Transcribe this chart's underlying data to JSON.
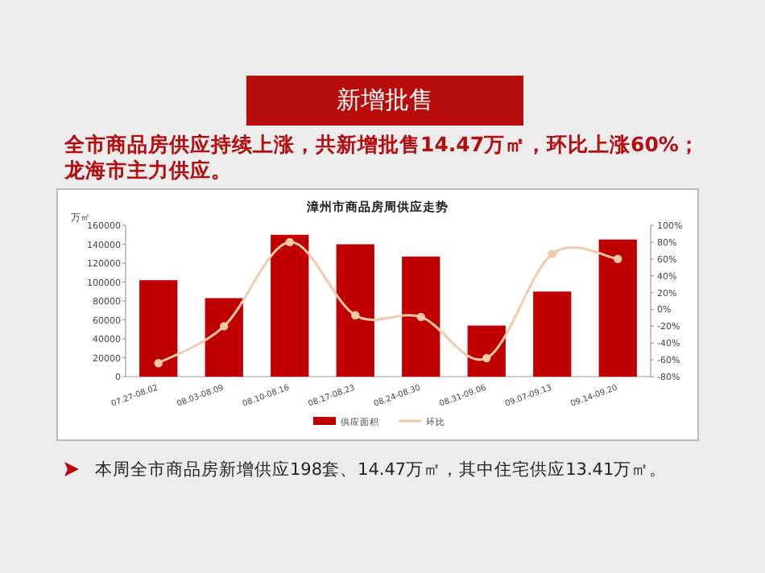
{
  "chart_data": {
    "type": "bar",
    "title": "漳州市商品房周供应走势",
    "ylabel": "万㎡",
    "categories": [
      "07.27-08.02",
      "08.03-08.09",
      "08.10-08.16",
      "08.17-08.23",
      "08.24-08.30",
      "08.31-09.06",
      "09.07-09.13",
      "09.14-09.20"
    ],
    "series": [
      {
        "name": "供应面积",
        "color": "#c00000",
        "values": [
          102000,
          83000,
          150000,
          140000,
          127000,
          54000,
          90000,
          145000
        ]
      },
      {
        "name": "环比",
        "type": "line",
        "axis": "y2",
        "color": "#f3c9a8",
        "values": [
          -64,
          -20,
          80,
          -7,
          -9,
          -58,
          66,
          60
        ]
      }
    ],
    "ylim": [
      0,
      160000
    ],
    "yticks": [
      0,
      20000,
      40000,
      60000,
      80000,
      100000,
      120000,
      140000,
      160000
    ],
    "y2lim": [
      -80,
      100
    ],
    "y2ticks": [
      {
        "value": -80,
        "label": "-80%"
      },
      {
        "value": -60,
        "label": "-60%"
      },
      {
        "value": -40,
        "label": "-40%"
      },
      {
        "value": -20,
        "label": "-20%"
      },
      {
        "value": 0,
        "label": "0%"
      },
      {
        "value": 20,
        "label": "20%"
      },
      {
        "value": 40,
        "label": "40%"
      },
      {
        "value": 60,
        "label": "60%"
      },
      {
        "value": 80,
        "label": "80%"
      },
      {
        "value": 100,
        "label": "100%"
      }
    ],
    "marker": "circle",
    "legend": "bottom",
    "annotations": [
      "新增批售",
      "全市商品房供应持续上涨，共新增批售14.47万㎡，环比上涨60%；龙海市主力供应。",
      "本周全市商品房新增供应198套、14.47万㎡，其中住宅供应13.41万㎡。"
    ]
  }
}
